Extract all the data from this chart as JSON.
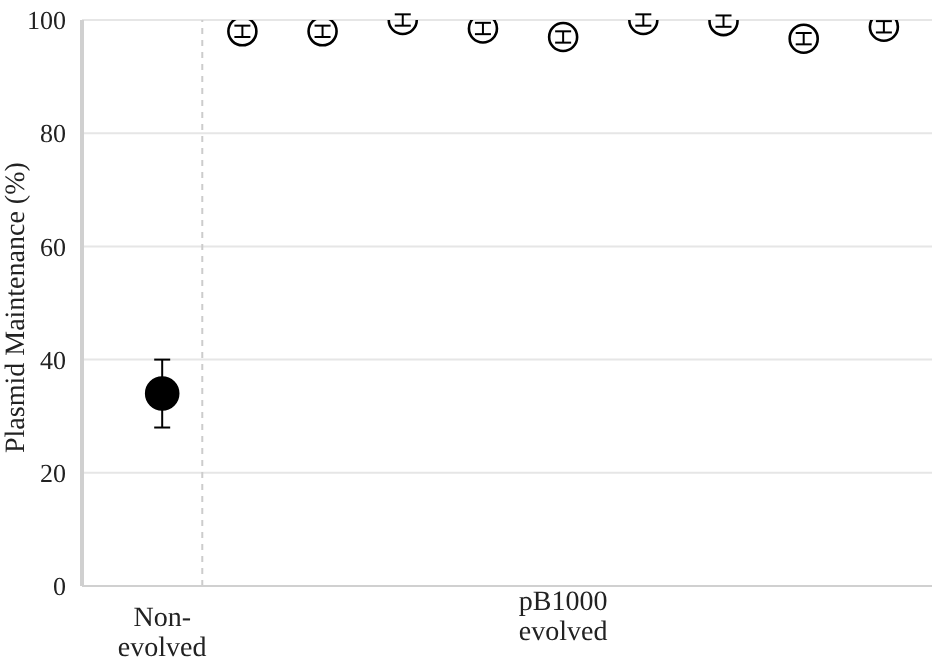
{
  "chart_data": {
    "type": "scatter",
    "ylabel": "Plasmid Maintenance (%)",
    "categories": [
      "Non-evolved",
      null,
      null,
      null,
      null,
      null,
      null,
      null,
      null,
      null
    ],
    "annotations": [
      "pB1000 evolved"
    ],
    "ylim": [
      0,
      100
    ],
    "yticks": [
      0,
      20,
      40,
      60,
      80,
      100
    ],
    "grid": "y",
    "marker": "circle",
    "series": [
      {
        "color": "#000000",
        "values": [
          34,
          null,
          null,
          null,
          null,
          null,
          null,
          null,
          null,
          null
        ],
        "errors": [
          6,
          null,
          null,
          null,
          null,
          null,
          null,
          null,
          null,
          null
        ]
      },
      {
        "color": "#000000",
        "values": [
          null,
          98,
          98,
          100,
          98.5,
          97,
          100,
          99.8,
          96.7,
          98.8
        ],
        "errors": [
          null,
          1,
          1,
          1,
          1,
          1,
          1,
          1,
          1,
          1
        ]
      }
    ]
  }
}
